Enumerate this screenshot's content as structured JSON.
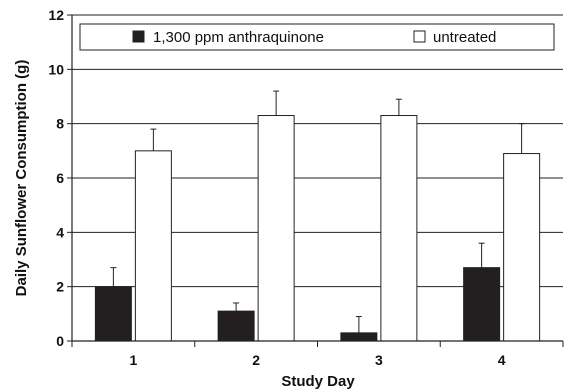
{
  "chart_data": {
    "type": "bar",
    "title": "",
    "xlabel": "Study Day",
    "ylabel": "Daily Sunflower Consumption (g)",
    "categories": [
      "1",
      "2",
      "3",
      "4"
    ],
    "ylim": [
      0,
      12
    ],
    "yticks": [
      "0",
      "2",
      "4",
      "6",
      "8",
      "10",
      "12"
    ],
    "grid": "horizontal",
    "legend_position": "top",
    "series": [
      {
        "name": "1,300 ppm anthraquinone",
        "color": "#231f20",
        "values": [
          2.0,
          1.1,
          0.3,
          2.7
        ],
        "error": [
          0.7,
          0.3,
          0.6,
          0.9
        ]
      },
      {
        "name": "untreated",
        "color": "#ffffff",
        "values": [
          7.0,
          8.3,
          8.3,
          6.9
        ],
        "error": [
          0.8,
          0.9,
          0.6,
          1.1
        ]
      }
    ]
  }
}
